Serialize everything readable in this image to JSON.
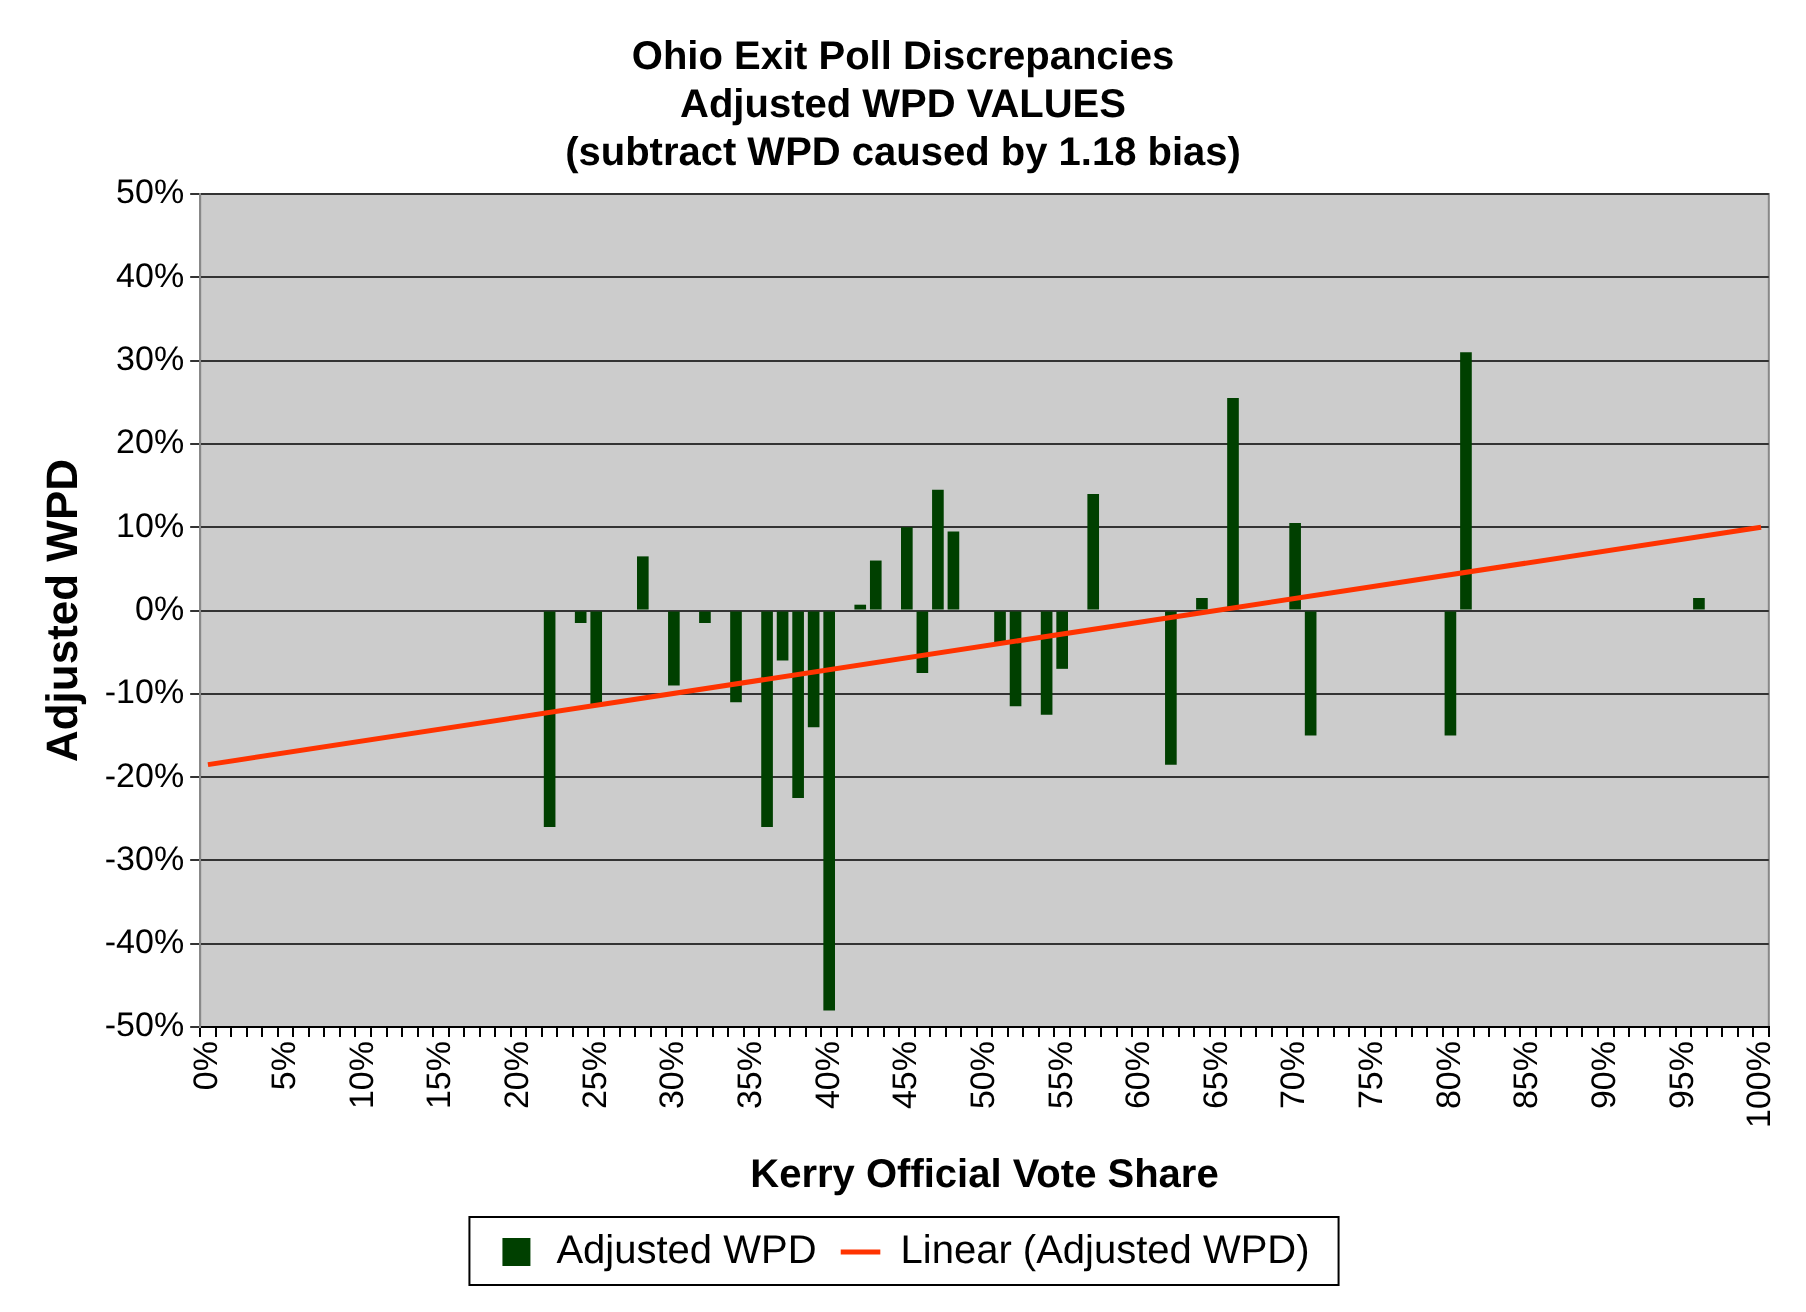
{
  "chart_data": {
    "type": "bar",
    "title": [
      "Ohio Exit Poll Discrepancies",
      "Adjusted WPD VALUES",
      "(subtract WPD caused by 1.18 bias)"
    ],
    "xlabel": "Kerry Official Vote Share",
    "ylabel": "Adjusted WPD",
    "categories": [
      "0%",
      null,
      null,
      null,
      null,
      "5%",
      null,
      null,
      null,
      null,
      "10%",
      null,
      null,
      null,
      null,
      "15%",
      null,
      null,
      null,
      null,
      "20%",
      null,
      null,
      null,
      null,
      "25%",
      null,
      null,
      null,
      null,
      "30%",
      null,
      null,
      null,
      null,
      "35%",
      null,
      null,
      null,
      null,
      "40%",
      null,
      null,
      null,
      null,
      "45%",
      null,
      null,
      null,
      null,
      "50%",
      null,
      null,
      null,
      null,
      "55%",
      null,
      null,
      null,
      null,
      "60%",
      null,
      null,
      null,
      null,
      "65%",
      null,
      null,
      null,
      null,
      "70%",
      null,
      null,
      null,
      null,
      "75%",
      null,
      null,
      null,
      null,
      "80%",
      null,
      null,
      null,
      null,
      "85%",
      null,
      null,
      null,
      null,
      "90%",
      null,
      null,
      null,
      null,
      "95%",
      null,
      null,
      null,
      null,
      "100%"
    ],
    "series": [
      {
        "name": "Adjusted WPD",
        "color": "#004000",
        "values": [
          null,
          null,
          null,
          null,
          null,
          null,
          null,
          null,
          null,
          null,
          null,
          null,
          null,
          null,
          null,
          null,
          null,
          null,
          null,
          null,
          null,
          null,
          -26,
          null,
          -1.5,
          -11.5,
          null,
          null,
          6.5,
          null,
          -9,
          null,
          -1.5,
          null,
          -11,
          null,
          -26,
          -6,
          -22.5,
          -14,
          -48,
          null,
          0.7,
          6,
          null,
          10,
          -7.5,
          14.5,
          9.5,
          null,
          null,
          -4,
          -11.5,
          null,
          -12.5,
          -7,
          null,
          14,
          null,
          null,
          null,
          null,
          -18.5,
          null,
          1.5,
          null,
          25.5,
          null,
          null,
          null,
          10.5,
          -15,
          null,
          null,
          null,
          null,
          null,
          null,
          null,
          null,
          -15,
          31,
          null,
          null,
          null,
          null,
          null,
          null,
          null,
          null,
          null,
          null,
          null,
          null,
          null,
          null,
          1.5,
          null,
          null,
          null,
          null
        ]
      },
      {
        "name": "Linear (Adjusted WPD)",
        "type": "line",
        "color": "#ff3300",
        "x": [
          "0%",
          "100%"
        ],
        "values": [
          -18.5,
          10
        ]
      }
    ],
    "ylim": [
      -50,
      50
    ],
    "yticks": [
      {
        "value": -50,
        "label": "-50%"
      },
      {
        "value": -40,
        "label": "-40%"
      },
      {
        "value": -30,
        "label": "-30%"
      },
      {
        "value": -20,
        "label": "-20%"
      },
      {
        "value": -10,
        "label": "-10%"
      },
      {
        "value": 0,
        "label": "0%"
      },
      {
        "value": 10,
        "label": "10%"
      },
      {
        "value": 20,
        "label": "20%"
      },
      {
        "value": 30,
        "label": "30%"
      },
      {
        "value": 40,
        "label": "40%"
      },
      {
        "value": 50,
        "label": "50%"
      }
    ],
    "grid": "y",
    "legend": "bottom"
  }
}
